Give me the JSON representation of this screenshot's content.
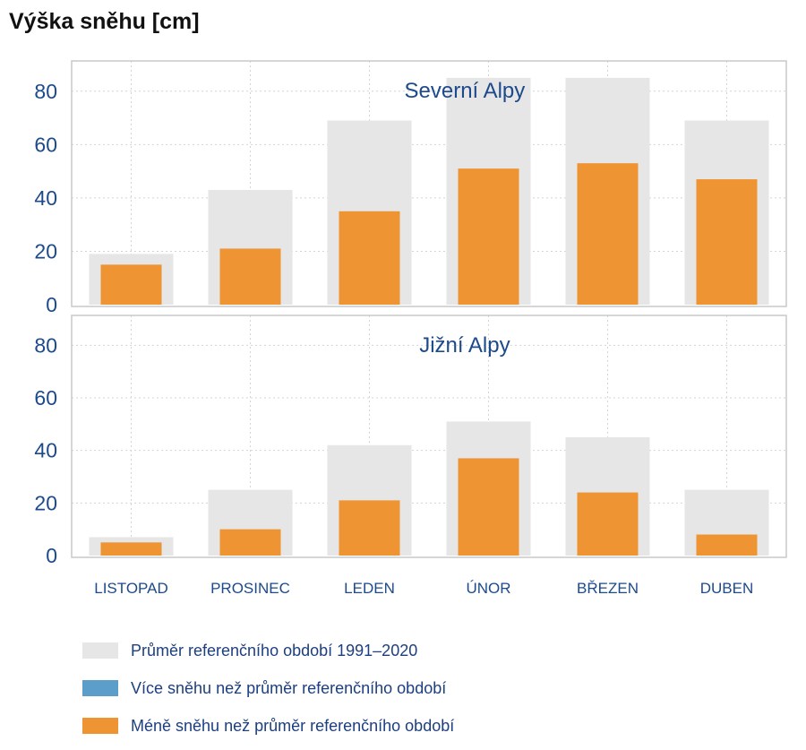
{
  "title": "Výška sněhu [cm]",
  "colors": {
    "reference": "#e6e6e6",
    "more": "#5b9ec9",
    "less": "#ee9433",
    "axis_text": "#1c4a8a",
    "panel_border": "#c8c8c8",
    "grid": "#d4d4d4"
  },
  "chart_data": {
    "type": "bar",
    "categories": [
      "LISTOPAD",
      "PROSINEC",
      "LEDEN",
      "ÚNOR",
      "BŘEZEN",
      "DUBEN"
    ],
    "ylim": [
      0,
      90
    ],
    "yticks": [
      0,
      20,
      40,
      60,
      80
    ],
    "grid": true,
    "panels": [
      {
        "title": "Severní Alpy",
        "reference": [
          19,
          43,
          69,
          85,
          85,
          69
        ],
        "values": [
          15,
          21,
          35,
          51,
          53,
          47
        ]
      },
      {
        "title": "Jižní Alpy",
        "reference": [
          7,
          25,
          42,
          51,
          45,
          25
        ],
        "values": [
          5,
          10,
          21,
          37,
          24,
          8
        ]
      }
    ]
  },
  "legend": [
    {
      "label": "Průměr referenčního období 1991–2020",
      "color_key": "reference"
    },
    {
      "label": "Více sněhu než průměr referenčního období",
      "color_key": "more"
    },
    {
      "label": "Méně sněhu než průměr referenčního období",
      "color_key": "less"
    }
  ]
}
